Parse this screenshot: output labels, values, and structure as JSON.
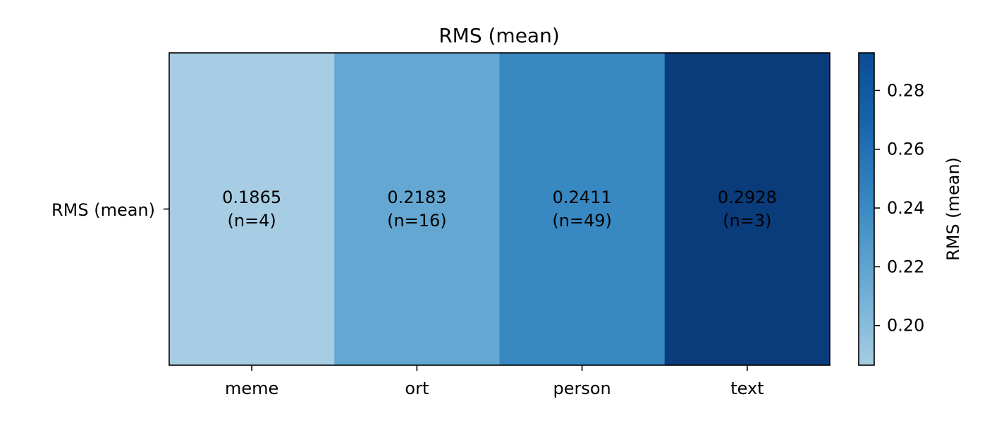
{
  "chart_data": {
    "type": "heatmap",
    "title": "RMS (mean)",
    "rows": [
      "RMS (mean)"
    ],
    "columns": [
      "meme",
      "ort",
      "person",
      "text"
    ],
    "values": [
      [
        0.1865,
        0.2183,
        0.2411,
        0.2928
      ]
    ],
    "value_labels": [
      "0.1865",
      "0.2183",
      "0.2411",
      "0.2928"
    ],
    "counts": [
      "(n=4)",
      "(n=16)",
      "(n=49)",
      "(n=3)"
    ],
    "colorbar": {
      "label": "RMS (mean)",
      "range": [
        0.1865,
        0.2928
      ],
      "ticks": [
        0.2,
        0.22,
        0.24,
        0.26,
        0.28
      ],
      "tick_labels": [
        "0.20",
        "0.22",
        "0.24",
        "0.26",
        "0.28"
      ],
      "colormap": "Blues",
      "color_low": "#a6cde3",
      "color_high": "#083a7a"
    },
    "cell_colors": [
      "#a6cde3",
      "#63a7d2",
      "#3888c1",
      "#0a3b7b"
    ],
    "grid": false
  }
}
